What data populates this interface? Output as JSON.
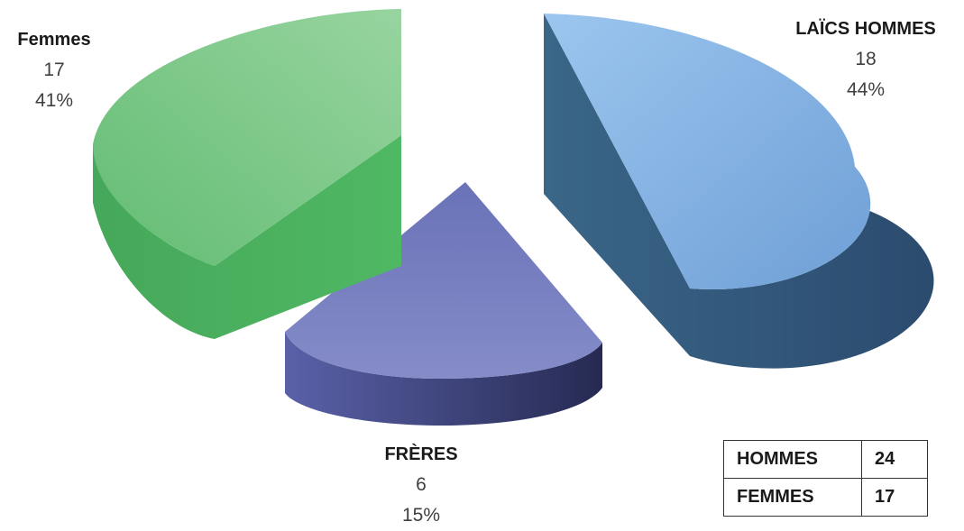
{
  "chart_data": {
    "type": "pie",
    "title": "",
    "slices": [
      {
        "name": "LAÏCS HOMMES",
        "value": 18,
        "percent": "44%",
        "color": "#7fb0e4"
      },
      {
        "name": "FRÈRES",
        "value": 6,
        "percent": "15%",
        "color": "#6e76b8"
      },
      {
        "name": "Femmes",
        "value": 17,
        "percent": "41%",
        "color": "#6cc37a"
      }
    ],
    "exploded": true,
    "style": "3d"
  },
  "summary_table": {
    "rows": [
      {
        "label": "HOMMES",
        "value": "24"
      },
      {
        "label": "FEMMES",
        "value": "17"
      }
    ]
  }
}
